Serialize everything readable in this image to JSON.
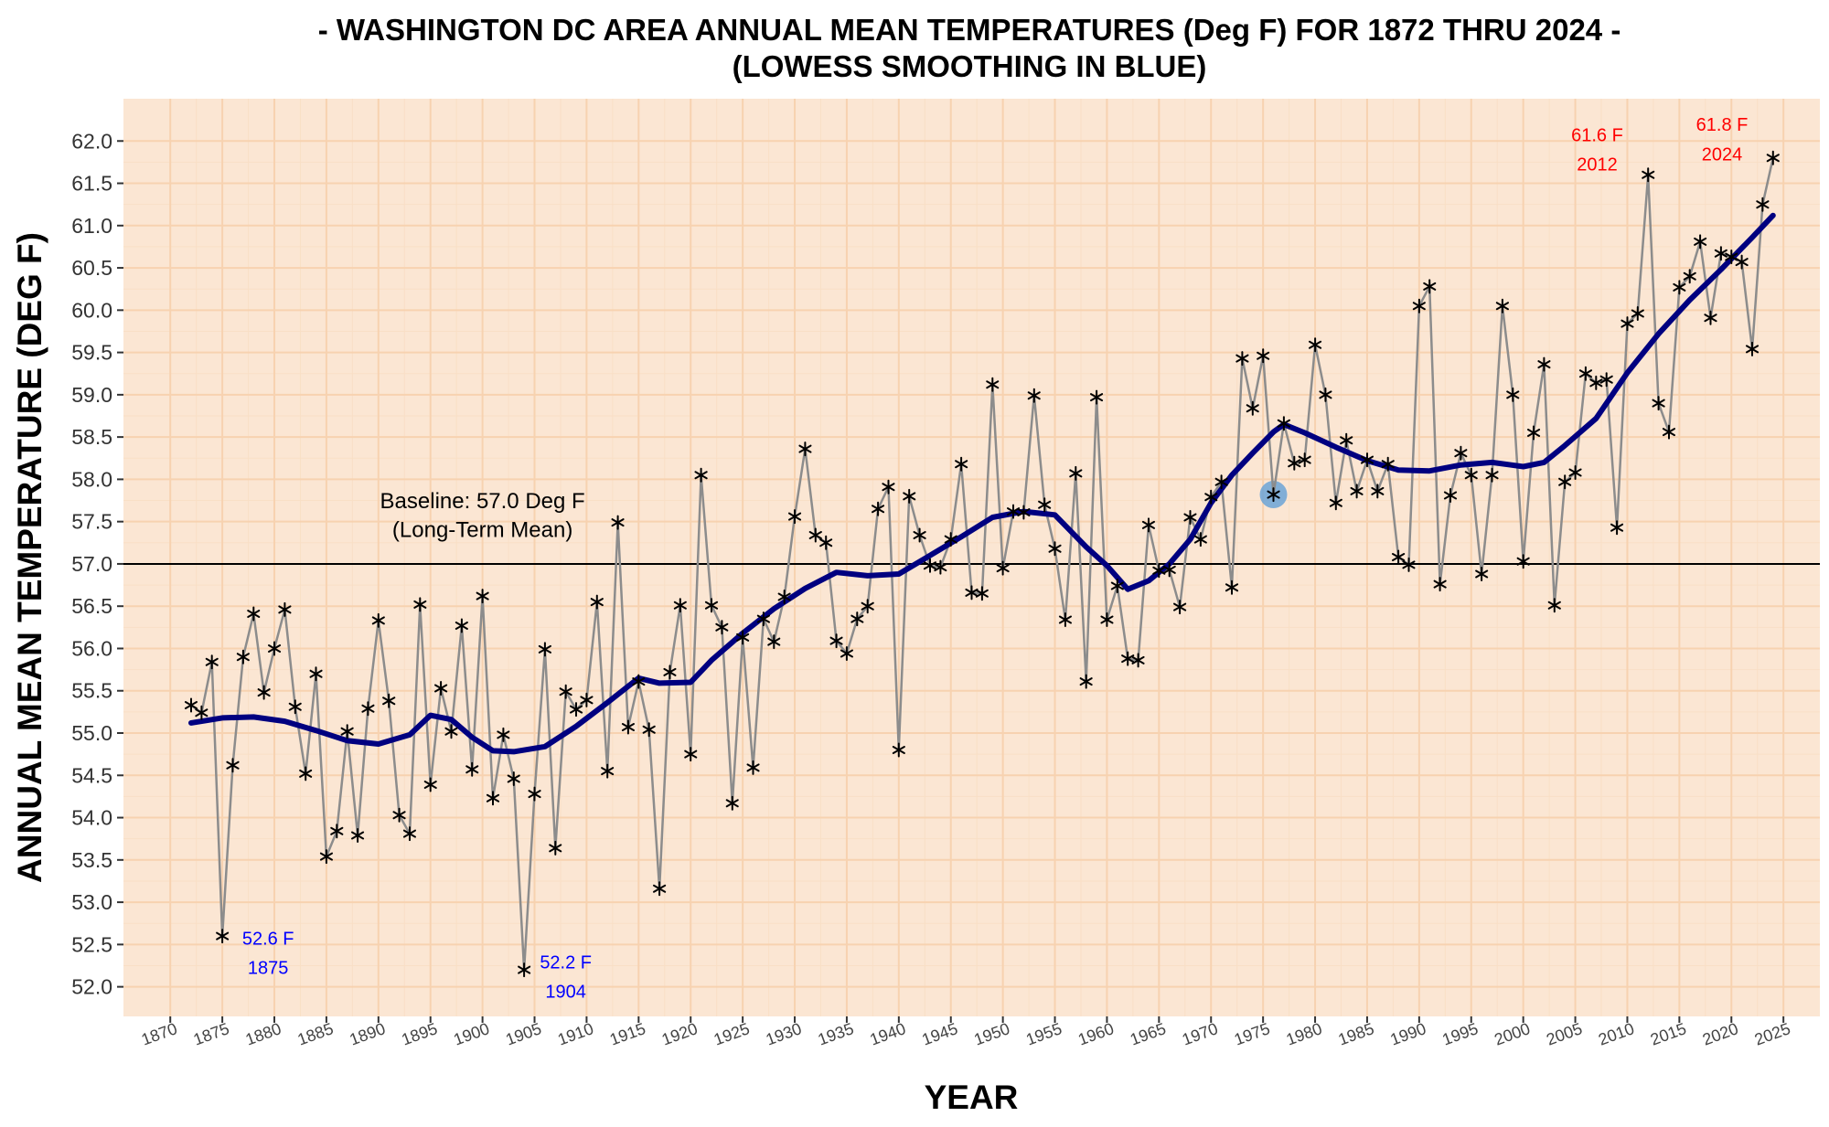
{
  "chart_data": {
    "type": "line",
    "title": "- WASHINGTON DC AREA ANNUAL MEAN TEMPERATURES (Deg F) FOR 1872 THRU 2024 -",
    "subtitle": "(LOWESS SMOOTHING IN BLUE)",
    "xlabel": "YEAR",
    "ylabel": "ANNUAL MEAN TEMPERATURE (DEG F)",
    "xlim": [
      1865.5,
      2028.5
    ],
    "ylim": [
      51.65,
      62.5
    ],
    "xticks": [
      1870,
      1875,
      1880,
      1885,
      1890,
      1895,
      1900,
      1905,
      1910,
      1915,
      1920,
      1925,
      1930,
      1935,
      1940,
      1945,
      1950,
      1955,
      1960,
      1965,
      1970,
      1975,
      1980,
      1985,
      1990,
      1995,
      2000,
      2005,
      2010,
      2015,
      2020,
      2025
    ],
    "yticks": [
      52.0,
      52.5,
      53.0,
      53.5,
      54.0,
      54.5,
      55.0,
      55.5,
      56.0,
      56.5,
      57.0,
      57.5,
      58.0,
      58.5,
      59.0,
      59.5,
      60.0,
      60.5,
      61.0,
      61.5,
      62.0
    ],
    "grid": true,
    "colors": {
      "panel_bg": "#fbe6d3",
      "grid_major": "#f7d2b0",
      "grid_minor": "#f9dfc6",
      "data_line": "#8c8c8c",
      "marker": "#000000",
      "smooth_line": "#000080",
      "baseline": "#000000",
      "highlight": "#6ba3d6",
      "low_annotation": "#0000ff",
      "high_annotation": "#ff0000"
    },
    "series": [
      {
        "name": "Annual mean temperature",
        "x": [
          1872,
          1873,
          1874,
          1875,
          1876,
          1877,
          1878,
          1879,
          1880,
          1881,
          1882,
          1883,
          1884,
          1885,
          1886,
          1887,
          1888,
          1889,
          1890,
          1891,
          1892,
          1893,
          1894,
          1895,
          1896,
          1897,
          1898,
          1899,
          1900,
          1901,
          1902,
          1903,
          1904,
          1905,
          1906,
          1907,
          1908,
          1909,
          1910,
          1911,
          1912,
          1913,
          1914,
          1915,
          1916,
          1917,
          1918,
          1919,
          1920,
          1921,
          1922,
          1923,
          1924,
          1925,
          1926,
          1927,
          1928,
          1929,
          1930,
          1931,
          1932,
          1933,
          1934,
          1935,
          1936,
          1937,
          1938,
          1939,
          1940,
          1941,
          1942,
          1943,
          1944,
          1945,
          1946,
          1947,
          1948,
          1949,
          1950,
          1951,
          1952,
          1953,
          1954,
          1955,
          1956,
          1957,
          1958,
          1959,
          1960,
          1961,
          1962,
          1963,
          1964,
          1965,
          1966,
          1967,
          1968,
          1969,
          1970,
          1971,
          1972,
          1973,
          1974,
          1975,
          1976,
          1977,
          1978,
          1979,
          1980,
          1981,
          1982,
          1983,
          1984,
          1985,
          1986,
          1987,
          1988,
          1989,
          1990,
          1991,
          1992,
          1993,
          1994,
          1995,
          1996,
          1997,
          1998,
          1999,
          2000,
          2001,
          2002,
          2003,
          2004,
          2005,
          2006,
          2007,
          2008,
          2009,
          2010,
          2011,
          2012,
          2013,
          2014,
          2015,
          2016,
          2017,
          2018,
          2019,
          2020,
          2021,
          2022,
          2023,
          2024
        ],
        "y": [
          55.33,
          55.24,
          55.84,
          52.6,
          54.62,
          55.9,
          56.41,
          55.48,
          56.0,
          56.46,
          55.31,
          54.52,
          55.7,
          53.54,
          53.84,
          55.02,
          53.79,
          55.29,
          56.33,
          55.38,
          54.03,
          53.81,
          56.52,
          54.39,
          55.53,
          55.02,
          56.27,
          54.57,
          56.62,
          54.23,
          54.98,
          54.46,
          52.2,
          54.28,
          55.99,
          53.64,
          55.49,
          55.28,
          55.39,
          56.55,
          54.55,
          57.49,
          55.07,
          55.61,
          55.04,
          53.16,
          55.72,
          56.51,
          54.75,
          58.05,
          56.51,
          56.25,
          54.17,
          56.13,
          54.59,
          56.35,
          56.08,
          56.61,
          57.56,
          58.36,
          57.34,
          57.25,
          56.09,
          55.94,
          56.35,
          56.5,
          57.65,
          57.91,
          54.8,
          57.8,
          57.34,
          56.98,
          56.96,
          57.29,
          58.18,
          56.66,
          56.65,
          59.12,
          56.95,
          57.62,
          57.61,
          58.99,
          57.7,
          57.18,
          56.34,
          58.07,
          55.61,
          58.97,
          56.34,
          56.74,
          55.88,
          55.86,
          57.46,
          56.92,
          56.93,
          56.49,
          57.55,
          57.29,
          57.79,
          57.97,
          56.72,
          59.43,
          58.84,
          59.46,
          57.82,
          58.66,
          58.19,
          58.23,
          59.59,
          59.0,
          57.72,
          58.46,
          57.86,
          58.23,
          57.86,
          58.18,
          57.08,
          56.99,
          60.05,
          60.28,
          56.76,
          57.81,
          58.31,
          58.05,
          56.88,
          58.05,
          60.05,
          59.0,
          57.03,
          58.55,
          59.36,
          56.51,
          57.97,
          58.08,
          59.25,
          59.14,
          59.18,
          57.43,
          59.84,
          59.96,
          61.6,
          58.9,
          58.56,
          60.27,
          60.4,
          60.81,
          59.91,
          60.67,
          60.63,
          60.57,
          59.54,
          61.25,
          61.8
        ]
      },
      {
        "name": "LOWESS smoothing",
        "x": [
          1872,
          1875,
          1878,
          1881,
          1884,
          1887,
          1890,
          1893,
          1895,
          1897,
          1899,
          1901,
          1903,
          1906,
          1909,
          1912,
          1915,
          1917,
          1920,
          1922,
          1925,
          1928,
          1931,
          1934,
          1937,
          1940,
          1943,
          1946,
          1949,
          1952,
          1955,
          1958,
          1960,
          1962,
          1964,
          1966,
          1968,
          1970,
          1972,
          1974,
          1976,
          1977,
          1979,
          1982,
          1985,
          1988,
          1991,
          1994,
          1997,
          2000,
          2002,
          2004,
          2007,
          2010,
          2013,
          2016,
          2019,
          2022,
          2024
        ],
        "y": [
          55.12,
          55.18,
          55.19,
          55.14,
          55.03,
          54.91,
          54.87,
          54.98,
          55.21,
          55.16,
          54.95,
          54.79,
          54.78,
          54.84,
          55.08,
          55.36,
          55.65,
          55.59,
          55.6,
          55.86,
          56.18,
          56.47,
          56.71,
          56.9,
          56.86,
          56.88,
          57.1,
          57.32,
          57.55,
          57.62,
          57.58,
          57.2,
          56.98,
          56.7,
          56.8,
          57.0,
          57.29,
          57.72,
          58.05,
          58.31,
          58.56,
          58.65,
          58.55,
          58.38,
          58.22,
          58.11,
          58.1,
          58.17,
          58.2,
          58.15,
          58.2,
          58.4,
          58.72,
          59.26,
          59.72,
          60.12,
          60.48,
          60.86,
          61.12
        ]
      }
    ],
    "reference_lines": [
      {
        "y": 57.0,
        "label_line1": "Baseline: 57.0 Deg F",
        "label_line2": "(Long-Term Mean)"
      }
    ],
    "highlight_point": {
      "x": 1976,
      "y": 57.82
    },
    "annotations": [
      {
        "id": "low1875",
        "value_text": "52.6 F",
        "year_text": "1875",
        "kind": "low"
      },
      {
        "id": "low1904",
        "value_text": "52.2 F",
        "year_text": "1904",
        "kind": "low"
      },
      {
        "id": "high2012",
        "value_text": "61.6 F",
        "year_text": "2012",
        "kind": "high"
      },
      {
        "id": "high2024",
        "value_text": "61.8 F",
        "year_text": "2024",
        "kind": "high"
      }
    ]
  }
}
